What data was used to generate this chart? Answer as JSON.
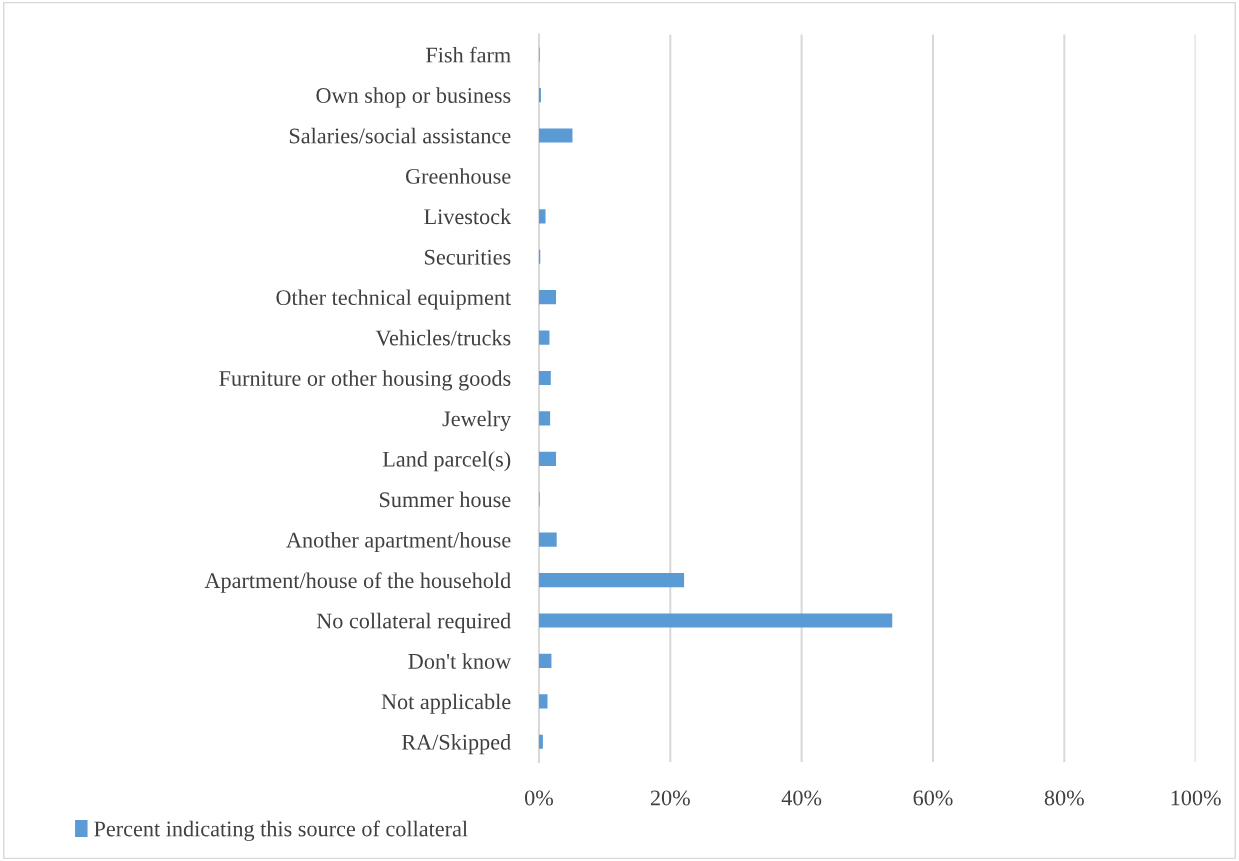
{
  "chart_data": {
    "type": "bar",
    "orientation": "horizontal",
    "categories": [
      "Fish farm",
      "Own shop or business",
      "Salaries/social assistance",
      "Greenhouse",
      "Livestock",
      "Securities",
      "Other technical equipment",
      "Vehicles/trucks",
      "Furniture or other housing goods",
      "Jewelry",
      "Land parcel(s)",
      "Summer house",
      "Another apartment/house",
      "Apartment/house of the household",
      "No collateral required",
      "Don't know",
      "Not applicable",
      "RA/Skipped"
    ],
    "series": [
      {
        "name": "Percent indicating this source of collateral",
        "color": "#5b9bd5",
        "values": [
          0.1,
          0.3,
          5.1,
          0,
          1.0,
          0.2,
          2.6,
          1.6,
          1.8,
          1.7,
          2.6,
          0.1,
          2.7,
          22.1,
          53.8,
          1.9,
          1.3,
          0.6
        ]
      }
    ],
    "xlim": [
      0,
      100
    ],
    "xticks": [
      {
        "value": 0,
        "label": "0%"
      },
      {
        "value": 20,
        "label": "20%"
      },
      {
        "value": 40,
        "label": "40%"
      },
      {
        "value": 60,
        "label": "60%"
      },
      {
        "value": 80,
        "label": "80%"
      },
      {
        "value": 100,
        "label": "100%"
      }
    ],
    "grid": "x",
    "legend": "bottom"
  }
}
